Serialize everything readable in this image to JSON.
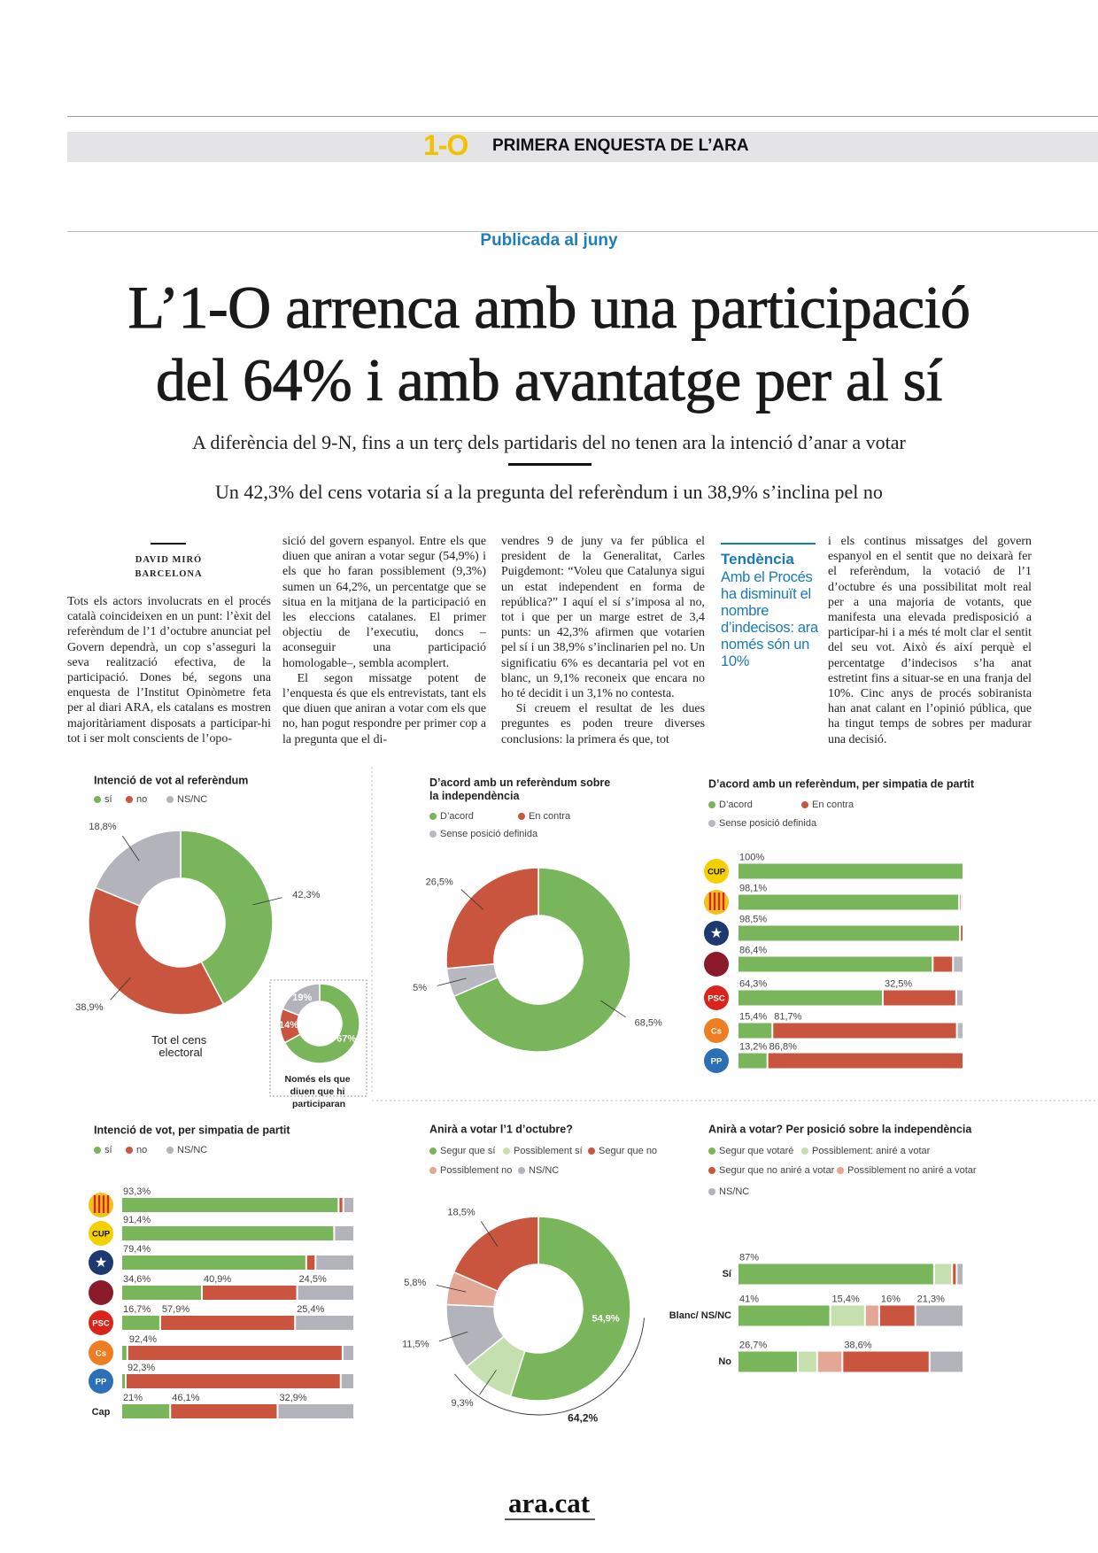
{
  "header": {
    "logo": "1-O",
    "section": "PRIMERA ENQUESTA DE L’ARA"
  },
  "kicker": "Publicada al juny",
  "title_lines": [
    "L’1-O arrenca amb una participació",
    "del 64% i amb avantatge per al sí"
  ],
  "subtitles": [
    "A diferència del 9-N, fins a un terç dels partidaris del no tenen ara la intenció d’anar a votar",
    "Un 42,3% del cens votaria sí a la pregunta del referèndum i un 38,9% s’inclina pel no"
  ],
  "article": {
    "author": "DAVID MIRÓ",
    "place": "BARCELONA",
    "columns": [
      [
        "Tots els actors involucrats en el procés català coincideixen en un punt: l’èxit del referèndum de l’1 d’octubre anunciat pel Govern dependrà, un cop s’asseguri la seva realització efectiva, de la participació. Dones bé, segons una enquesta de l’Institut Opinòmetre feta per al diari ARA, els catalans es mostren majoritàriament disposats a participar-hi tot i ser molt conscients de l’opo-"
      ],
      [
        "sició del govern espanyol. Entre els que diuen que aniran a votar segur (54,9%) i els que ho faran possiblement (9,3%) sumen un 64,2%, un percentatge que se situa en la mitjana de la participació en les eleccions catalanes. El primer objectiu de l’executiu, doncs –aconseguir una participació homologable–, sembla acomplert.",
        "El segon missatge potent de l’enquesta és que els entrevistats, tant els que diuen que aniran a votar com els que no, han pogut respondre per primer cop a la pregunta que el di-"
      ],
      [
        "vendres 9 de juny va fer pública el president de la Generalitat, Carles Puigdemont: “Voleu que Catalunya sigui un estat independent en forma de república?” I aquí el sí s’imposa al no, tot i que per un marge estret de 3,4 punts: un 42,3% afirmen que votarien pel sí i un 38,9% s’inclinarien pel no. Un significatiu 6% es decantaria pel vot en blanc, un 9,1% reconeix que encara no ho té decidit i un 3,1% no contesta.",
        "Si creuem el resultat de les dues preguntes es poden treure diverses conclusions: la primera és que, tot"
      ],
      [
        "i els continus missatges del govern espanyol en el sentit que no deixarà fer el referèndum, la votació de l’1 d’octubre és una possibilitat molt real per a una majoria de votants, que manifesta una elevada predisposició a participar-hi i a més té molt clar el sentit del seu vot. Això és així perquè el percentatge d’indecisos s’ha anat estretint fins a situar-se en una franja del 10%. Cinc anys de procés sobiranista han anat calant en l’opinió pública, que ha tingut temps de sobres per madurar una decisió."
      ]
    ]
  },
  "sidebar": {
    "heading": "Tendència",
    "text": "Amb el Procés ha disminuït el nombre d’indecisos: ara només són un 10%"
  },
  "chart_data": [
    {
      "type": "donut",
      "title": "Intenció de vot al referèndum",
      "categories": [
        "sí",
        "no",
        "NS/NC"
      ],
      "colors": [
        "#79b55a",
        "#c9553f",
        "#b3b3bc"
      ],
      "values": [
        42.3,
        38.9,
        18.8
      ],
      "value_labels": [
        "42,3%",
        "38,9%",
        "18,8%"
      ],
      "caption": "Tot el cens electoral"
    },
    {
      "type": "donut",
      "colors": [
        "#79b55a",
        "#c9553f",
        "#b3b3bc"
      ],
      "values": [
        67,
        14,
        19
      ],
      "value_labels": [
        "67%",
        "14%",
        "19%"
      ],
      "caption": "Només els que diuen que hi participaran"
    },
    {
      "type": "donut",
      "title": "D’acord amb un referèndum sobre la independència",
      "categories": [
        "D’acord",
        "En contra",
        "Sense posició definida"
      ],
      "colors": [
        "#79b55a",
        "#c9553f",
        "#b8b8c0"
      ],
      "values": [
        68.5,
        26.5,
        5
      ],
      "value_labels": [
        "68,5%",
        "26,5%",
        "5%"
      ]
    },
    {
      "type": "bar",
      "orientation": "horizontal",
      "stacked": true,
      "title": "D’acord amb un referèndum, per simpatia de partit",
      "categories": [
        "CUP",
        null,
        null,
        null,
        "PSC",
        "Cs",
        "PP"
      ],
      "xlim": [
        0,
        100
      ],
      "series": [
        {
          "name": "D’acord",
          "color": "#79b55a",
          "values": [
            100,
            98.1,
            98.5,
            86.4,
            64.3,
            15.4,
            13.2
          ],
          "value_labels": [
            "100%",
            "98,1%",
            "98,5%",
            "86,4%",
            "64,3%",
            "15,4%",
            "13,2%"
          ]
        },
        {
          "name": "En contra",
          "color": "#c9553f",
          "values": [
            0,
            1,
            1.5,
            9,
            32.5,
            81.7,
            86.8
          ],
          "value_labels": [
            null,
            null,
            null,
            null,
            "32,5%",
            "81,7%",
            "86,8%"
          ]
        },
        {
          "name": "Sense posició definida",
          "color": "#b8b8c0",
          "values": [
            0,
            0.9,
            0,
            4.6,
            3.2,
            2.9,
            0
          ]
        }
      ]
    },
    {
      "type": "bar",
      "orientation": "horizontal",
      "stacked": true,
      "title": "Intenció de vot, per simpatia de partit",
      "categories": [
        null,
        "CUP",
        null,
        null,
        "PSC",
        "Cs",
        "PP",
        "Cap"
      ],
      "xlim": [
        0,
        100
      ],
      "series": [
        {
          "name": "sí",
          "color": "#79b55a",
          "values": [
            93.3,
            91.4,
            79.4,
            34.6,
            16.7,
            2.6,
            1.9,
            21
          ],
          "value_labels": [
            "93,3%",
            "91,4%",
            "79,4%",
            "34,6%",
            "16,7%",
            null,
            null,
            "21%"
          ]
        },
        {
          "name": "no",
          "color": "#c9553f",
          "values": [
            2,
            0,
            4,
            40.9,
            57.9,
            92.4,
            92.3,
            46.1
          ],
          "value_labels": [
            null,
            null,
            null,
            "40,9%",
            "57,9%",
            "92,4%",
            "92,3%",
            "46,1%"
          ]
        },
        {
          "name": "NS/NC",
          "color": "#b3b3bc",
          "values": [
            4.7,
            8.6,
            16.6,
            24.5,
            25.4,
            5,
            5.8,
            32.9
          ],
          "value_labels": [
            null,
            null,
            null,
            "24,5%",
            "25,4%",
            null,
            null,
            "32,9%"
          ]
        }
      ]
    },
    {
      "type": "donut",
      "title": "Anirà a votar l’1 d’octubre?",
      "categories": [
        "Segur que sí",
        "Possiblement sí",
        "Segur que no",
        "Possiblement no",
        "NS/NC"
      ],
      "colors": [
        "#79b55a",
        "#c5e0ae",
        "#c9553f",
        "#e2a895",
        "#b3b3bc"
      ],
      "values": [
        54.9,
        9.3,
        18.5,
        5.8,
        11.5
      ],
      "value_labels": [
        "54,9%",
        "9,3%",
        "18,5%",
        "5,8%",
        "11,5%"
      ],
      "annotation": "64,2%"
    },
    {
      "type": "bar",
      "orientation": "horizontal",
      "stacked": true,
      "title": "Anirà a votar? Per posició sobre la independència",
      "categories": [
        "Sí",
        "Blanc/ NS/NC",
        "No"
      ],
      "xlim": [
        0,
        100
      ],
      "series": [
        {
          "name": "Segur que votaré",
          "color": "#79b55a",
          "values": [
            87,
            41,
            26.7
          ],
          "value_labels": [
            "87%",
            "41%",
            "26,7%"
          ]
        },
        {
          "name": "Possiblement: aniré a votar",
          "color": "#c5e0ae",
          "values": [
            8,
            15.4,
            8.5
          ],
          "value_labels": [
            null,
            "15,4%",
            null
          ]
        },
        {
          "name": "Segur que no aniré a votar",
          "color": "#c9553f",
          "values": [
            2,
            16,
            38.6
          ],
          "value_labels": [
            null,
            "16%",
            "38,6%"
          ]
        },
        {
          "name": "Possiblement no aniré a votar",
          "color": "#e2a895",
          "values": [
            0,
            6.3,
            11.2
          ]
        },
        {
          "name": "NS/NC",
          "color": "#b3b3bc",
          "values": [
            3,
            21.3,
            15
          ],
          "value_labels": [
            null,
            "21,3%",
            null
          ]
        }
      ]
    }
  ],
  "footer": "ara.cat"
}
